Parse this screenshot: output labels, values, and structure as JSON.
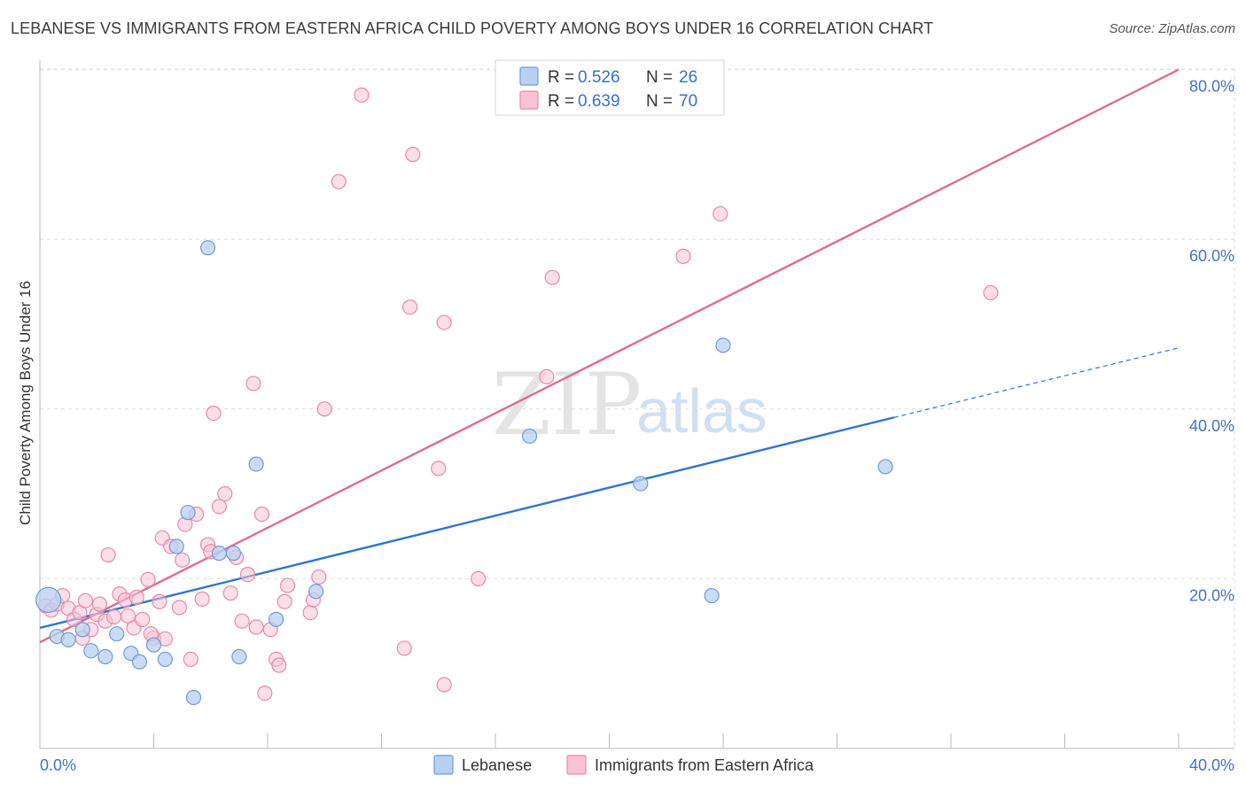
{
  "title": "LEBANESE VS IMMIGRANTS FROM EASTERN AFRICA CHILD POVERTY AMONG BOYS UNDER 16 CORRELATION CHART",
  "source": "Source: ZipAtlas.com",
  "watermark": {
    "zip": "ZIP",
    "atlas": "atlas"
  },
  "colors": {
    "blue_fill": "#b8d0f2",
    "blue_stroke": "#6f9bd8",
    "blue_line": "#2f74d0",
    "pink_fill": "#f8c3d4",
    "pink_stroke": "#e78aa9",
    "pink_line": "#e06b95",
    "grid": "#dedede",
    "tick_text": "#4472c4"
  },
  "legend": {
    "series1": {
      "r_label": "R =",
      "r_value": "0.526",
      "n_label": "N =",
      "n_value": "26"
    },
    "series2": {
      "r_label": "R =",
      "r_value": "0.639",
      "n_label": "N =",
      "n_value": "70"
    }
  },
  "chart_data": {
    "type": "scatter",
    "title": "LEBANESE VS IMMIGRANTS FROM EASTERN AFRICA CHILD POVERTY AMONG BOYS UNDER 16 CORRELATION CHART",
    "xlabel": "",
    "ylabel": "Child Poverty Among Boys Under 16",
    "xlim": [
      0,
      40
    ],
    "ylim": [
      0,
      80
    ],
    "x_tick_labels": [
      "0.0%",
      "40.0%"
    ],
    "y_ticks": [
      20,
      40,
      60,
      80
    ],
    "y_tick_labels": [
      "20.0%",
      "40.0%",
      "60.0%",
      "80.0%"
    ],
    "grid": true,
    "series": [
      {
        "name": "Lebanese",
        "r": 0.526,
        "n": 26,
        "trend": {
          "x0": 0,
          "y0": 14.2,
          "x1": 30,
          "y1": 39,
          "dashed_to_x": 40,
          "dashed_to_y": 47.2
        },
        "points": [
          [
            0.3,
            17.5
          ],
          [
            0.6,
            13.2
          ],
          [
            1.0,
            12.8
          ],
          [
            1.5,
            14.0
          ],
          [
            1.8,
            11.5
          ],
          [
            2.3,
            10.8
          ],
          [
            2.7,
            13.5
          ],
          [
            3.2,
            11.2
          ],
          [
            3.5,
            10.2
          ],
          [
            4.0,
            12.2
          ],
          [
            4.4,
            10.5
          ],
          [
            4.8,
            23.8
          ],
          [
            5.2,
            27.8
          ],
          [
            5.4,
            6.0
          ],
          [
            5.9,
            59.0
          ],
          [
            6.3,
            23.0
          ],
          [
            6.8,
            23.0
          ],
          [
            7.0,
            10.8
          ],
          [
            7.6,
            33.5
          ],
          [
            8.3,
            15.2
          ],
          [
            9.7,
            18.5
          ],
          [
            17.2,
            36.8
          ],
          [
            21.1,
            31.2
          ],
          [
            23.6,
            18.0
          ],
          [
            24.0,
            47.5
          ],
          [
            29.7,
            33.2
          ]
        ]
      },
      {
        "name": "Immigrants from Eastern Africa",
        "r": 0.639,
        "n": 70,
        "trend": {
          "x0": 0,
          "y0": 12.5,
          "x1": 40,
          "y1": 80
        },
        "points": [
          [
            0.2,
            16.8
          ],
          [
            0.4,
            16.3
          ],
          [
            0.6,
            17.0
          ],
          [
            0.8,
            18.0
          ],
          [
            1.0,
            16.5
          ],
          [
            1.2,
            15.2
          ],
          [
            1.4,
            16.0
          ],
          [
            1.5,
            13.0
          ],
          [
            1.6,
            17.4
          ],
          [
            1.8,
            14.0
          ],
          [
            2.0,
            15.8
          ],
          [
            2.1,
            17.0
          ],
          [
            2.3,
            15.0
          ],
          [
            2.4,
            22.8
          ],
          [
            2.6,
            15.5
          ],
          [
            2.8,
            18.2
          ],
          [
            3.0,
            17.5
          ],
          [
            3.1,
            15.6
          ],
          [
            3.3,
            14.2
          ],
          [
            3.4,
            17.8
          ],
          [
            3.6,
            15.2
          ],
          [
            3.8,
            19.9
          ],
          [
            4.0,
            13.0
          ],
          [
            4.2,
            17.3
          ],
          [
            4.3,
            24.8
          ],
          [
            4.4,
            12.9
          ],
          [
            4.6,
            23.8
          ],
          [
            4.9,
            16.6
          ],
          [
            5.0,
            22.2
          ],
          [
            5.1,
            26.4
          ],
          [
            5.3,
            10.5
          ],
          [
            5.5,
            27.6
          ],
          [
            5.7,
            17.6
          ],
          [
            5.9,
            24.0
          ],
          [
            6.0,
            23.2
          ],
          [
            6.1,
            39.5
          ],
          [
            6.3,
            28.5
          ],
          [
            6.5,
            30.0
          ],
          [
            6.7,
            18.3
          ],
          [
            6.9,
            22.5
          ],
          [
            7.1,
            15.0
          ],
          [
            7.3,
            20.5
          ],
          [
            7.5,
            43.0
          ],
          [
            7.6,
            14.3
          ],
          [
            7.8,
            27.6
          ],
          [
            7.9,
            6.5
          ],
          [
            8.1,
            14.0
          ],
          [
            8.3,
            10.5
          ],
          [
            8.4,
            9.8
          ],
          [
            8.6,
            17.3
          ],
          [
            8.7,
            19.2
          ],
          [
            9.5,
            16.0
          ],
          [
            9.6,
            17.5
          ],
          [
            9.8,
            20.2
          ],
          [
            10.0,
            40.0
          ],
          [
            10.5,
            66.8
          ],
          [
            11.3,
            77.0
          ],
          [
            12.8,
            11.8
          ],
          [
            13.0,
            52.0
          ],
          [
            13.1,
            70.0
          ],
          [
            14.0,
            33.0
          ],
          [
            14.2,
            50.2
          ],
          [
            14.2,
            7.5
          ],
          [
            15.4,
            20.0
          ],
          [
            17.8,
            43.8
          ],
          [
            18.0,
            55.5
          ],
          [
            22.6,
            58.0
          ],
          [
            23.9,
            63.0
          ],
          [
            33.4,
            53.7
          ],
          [
            3.9,
            13.5
          ]
        ]
      }
    ]
  },
  "bottom_legend": {
    "series1_label": "Lebanese",
    "series2_label": "Immigrants from Eastern Africa"
  }
}
